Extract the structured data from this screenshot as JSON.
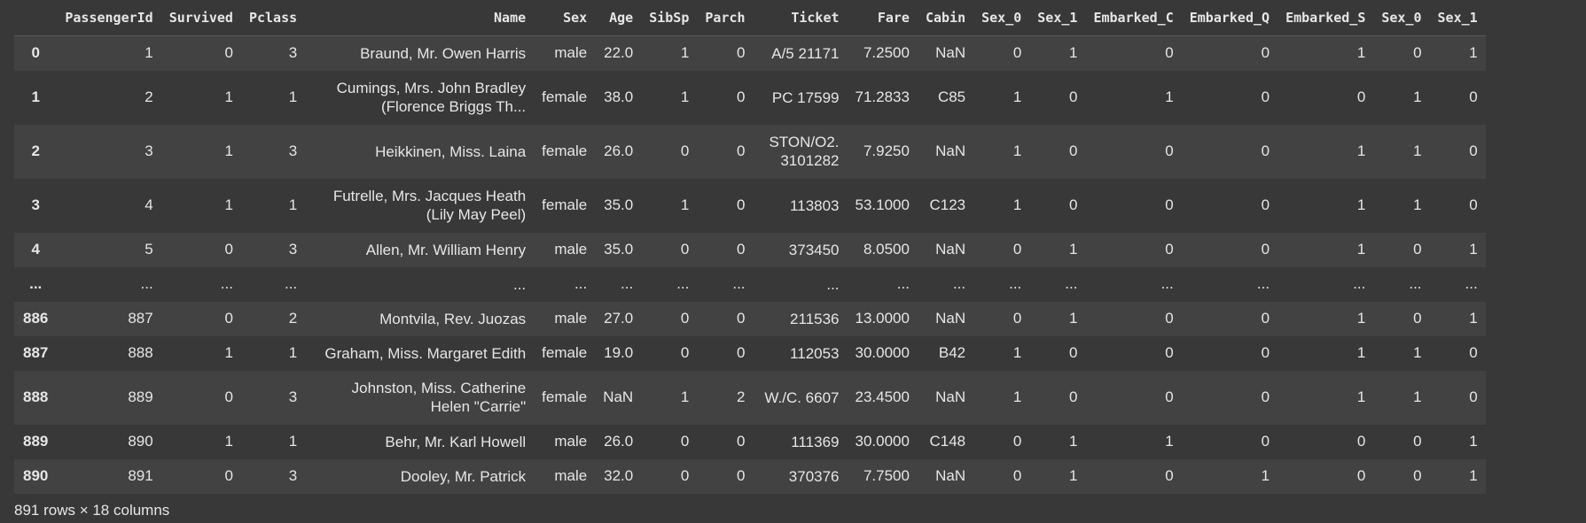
{
  "columns": [
    "",
    "PassengerId",
    "Survived",
    "Pclass",
    "Name",
    "Sex",
    "Age",
    "SibSp",
    "Parch",
    "Ticket",
    "Fare",
    "Cabin",
    "Sex_0",
    "Sex_1",
    "Embarked_C",
    "Embarked_Q",
    "Embarked_S",
    "Sex_0",
    "Sex_1"
  ],
  "rows": [
    {
      "index": "0",
      "cells": [
        "1",
        "0",
        "3",
        "Braund, Mr. Owen Harris",
        "male",
        "22.0",
        "1",
        "0",
        "A/5 21171",
        "7.2500",
        "NaN",
        "0",
        "1",
        "0",
        "0",
        "1",
        "0",
        "1"
      ],
      "tall": false
    },
    {
      "index": "1",
      "cells": [
        "2",
        "1",
        "1",
        "Cumings, Mrs. John Bradley (Florence Briggs Th...",
        "female",
        "38.0",
        "1",
        "0",
        "PC 17599",
        "71.2833",
        "C85",
        "1",
        "0",
        "1",
        "0",
        "0",
        "1",
        "0"
      ],
      "tall": true
    },
    {
      "index": "2",
      "cells": [
        "3",
        "1",
        "3",
        "Heikkinen, Miss. Laina",
        "female",
        "26.0",
        "0",
        "0",
        "STON/O2. 3101282",
        "7.9250",
        "NaN",
        "1",
        "0",
        "0",
        "0",
        "1",
        "1",
        "0"
      ],
      "tall": true
    },
    {
      "index": "3",
      "cells": [
        "4",
        "1",
        "1",
        "Futrelle, Mrs. Jacques Heath (Lily May Peel)",
        "female",
        "35.0",
        "1",
        "0",
        "113803",
        "53.1000",
        "C123",
        "1",
        "0",
        "0",
        "0",
        "1",
        "1",
        "0"
      ],
      "tall": true
    },
    {
      "index": "4",
      "cells": [
        "5",
        "0",
        "3",
        "Allen, Mr. William Henry",
        "male",
        "35.0",
        "0",
        "0",
        "373450",
        "8.0500",
        "NaN",
        "0",
        "1",
        "0",
        "0",
        "1",
        "0",
        "1"
      ],
      "tall": false
    },
    {
      "index": "...",
      "cells": [
        "...",
        "...",
        "...",
        "...",
        "...",
        "...",
        "...",
        "...",
        "...",
        "...",
        "...",
        "...",
        "...",
        "...",
        "...",
        "...",
        "...",
        "..."
      ],
      "tall": false
    },
    {
      "index": "886",
      "cells": [
        "887",
        "0",
        "2",
        "Montvila, Rev. Juozas",
        "male",
        "27.0",
        "0",
        "0",
        "211536",
        "13.0000",
        "NaN",
        "0",
        "1",
        "0",
        "0",
        "1",
        "0",
        "1"
      ],
      "tall": false
    },
    {
      "index": "887",
      "cells": [
        "888",
        "1",
        "1",
        "Graham, Miss. Margaret Edith",
        "female",
        "19.0",
        "0",
        "0",
        "112053",
        "30.0000",
        "B42",
        "1",
        "0",
        "0",
        "0",
        "1",
        "1",
        "0"
      ],
      "tall": false
    },
    {
      "index": "888",
      "cells": [
        "889",
        "0",
        "3",
        "Johnston, Miss. Catherine Helen \"Carrie\"",
        "female",
        "NaN",
        "1",
        "2",
        "W./C. 6607",
        "23.4500",
        "NaN",
        "1",
        "0",
        "0",
        "0",
        "1",
        "1",
        "0"
      ],
      "tall": true
    },
    {
      "index": "889",
      "cells": [
        "890",
        "1",
        "1",
        "Behr, Mr. Karl Howell",
        "male",
        "26.0",
        "0",
        "0",
        "111369",
        "30.0000",
        "C148",
        "0",
        "1",
        "1",
        "0",
        "0",
        "0",
        "1"
      ],
      "tall": false
    },
    {
      "index": "890",
      "cells": [
        "891",
        "0",
        "3",
        "Dooley, Mr. Patrick",
        "male",
        "32.0",
        "0",
        "0",
        "370376",
        "7.7500",
        "NaN",
        "0",
        "1",
        "0",
        "1",
        "0",
        "0",
        "1"
      ],
      "tall": false
    }
  ],
  "footer": "891 rows × 18 columns"
}
